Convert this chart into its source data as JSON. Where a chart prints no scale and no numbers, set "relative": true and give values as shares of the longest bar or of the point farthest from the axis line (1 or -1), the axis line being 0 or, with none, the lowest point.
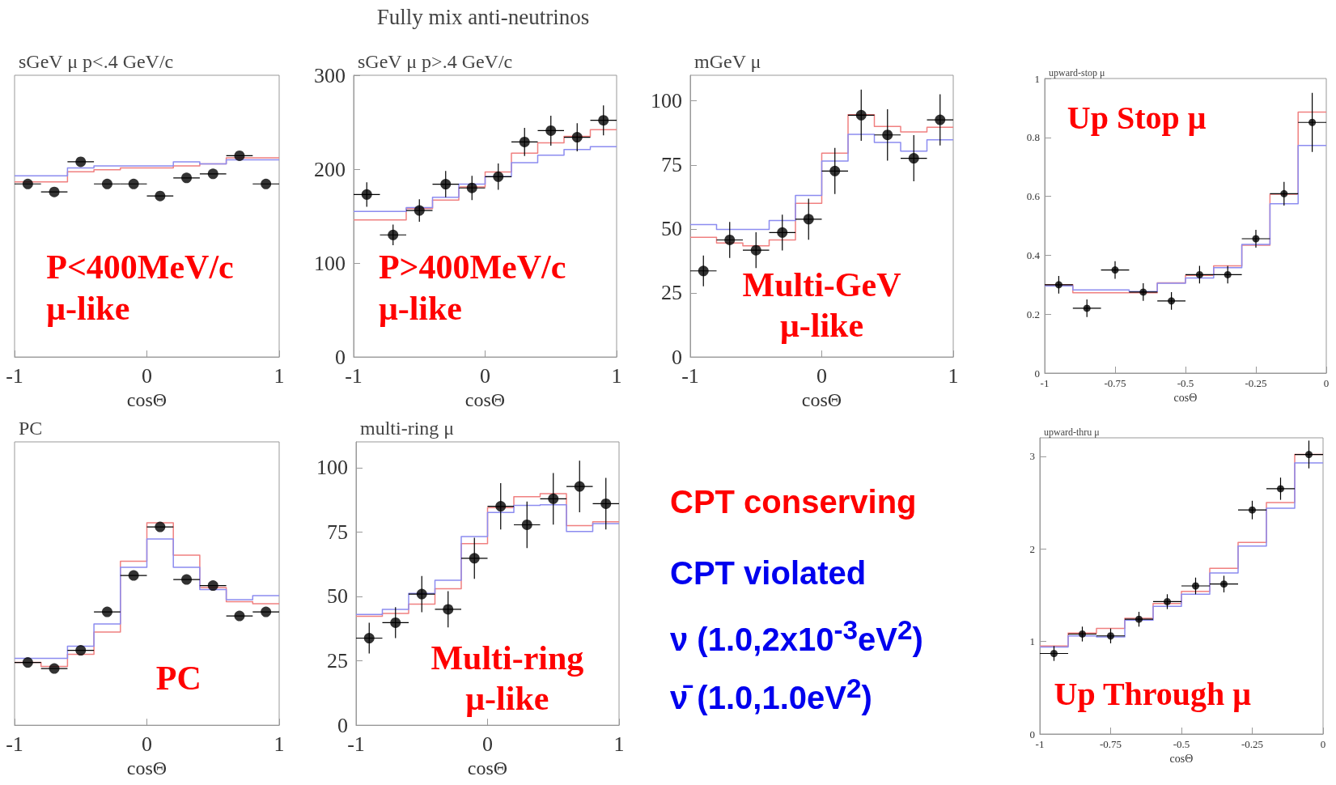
{
  "chart_data": [
    {
      "type": "scatter",
      "title": "sGeV μ p<.4 GeV/c",
      "xlabel": "cosΘ",
      "relative": true,
      "tick_labels": "x",
      "xlim": [
        -1,
        1
      ],
      "xticks": [
        -1,
        0,
        1
      ],
      "annotations": [
        "P<400MeV/c\nμ-like"
      ],
      "series": [
        {
          "type": "step",
          "color": "#f08080",
          "x": [
            -1,
            -0.8,
            -0.6,
            -0.4,
            -0.2,
            0,
            0.2,
            0.4,
            0.6,
            0.8,
            1
          ],
          "values": [
            0.87,
            0.87,
            0.92,
            0.93,
            0.94,
            0.94,
            0.95,
            0.96,
            0.99,
            0.99,
            0.99
          ]
        },
        {
          "type": "step",
          "color": "#8c8cf0",
          "x": [
            -1,
            -0.8,
            -0.6,
            -0.4,
            -0.2,
            0,
            0.2,
            0.4,
            0.6,
            0.8,
            1
          ],
          "values": [
            0.9,
            0.9,
            0.94,
            0.95,
            0.95,
            0.95,
            0.97,
            0.96,
            0.98,
            0.98,
            0.98
          ]
        },
        {
          "type": "scatter",
          "marker": "circle",
          "color": "#000000",
          "x": [
            -0.9,
            -0.7,
            -0.5,
            -0.3,
            -0.1,
            0.1,
            0.3,
            0.5,
            0.7,
            0.9
          ],
          "values": [
            0.86,
            0.82,
            0.97,
            0.86,
            0.86,
            0.8,
            0.89,
            0.91,
            1.0,
            0.86
          ],
          "xerrors": [
            0.1,
            0.1,
            0.1,
            0.1,
            0.1,
            0.1,
            0.1,
            0.1,
            0.1,
            0.1
          ]
        }
      ]
    },
    {
      "type": "scatter",
      "title": "sGeV μ p>.4 GeV/c",
      "xlabel": "cosΘ",
      "xlim": [
        -1,
        1
      ],
      "xticks": [
        -1,
        0,
        1
      ],
      "ylim": [
        0,
        300
      ],
      "yticks": [
        0,
        100,
        200,
        300
      ],
      "annotations": [
        "P>400MeV/c\nμ-like"
      ],
      "series": [
        {
          "type": "step",
          "color": "#f08080",
          "x": [
            -1,
            -0.8,
            -0.6,
            -0.4,
            -0.2,
            0,
            0.2,
            0.4,
            0.6,
            0.8,
            1
          ],
          "values": [
            146,
            146,
            158,
            167,
            181,
            197,
            217,
            228,
            235,
            242,
            242
          ]
        },
        {
          "type": "step",
          "color": "#8c8cf0",
          "x": [
            -1,
            -0.8,
            -0.6,
            -0.4,
            -0.2,
            0,
            0.2,
            0.4,
            0.6,
            0.8,
            1
          ],
          "values": [
            155,
            155,
            159,
            170,
            184,
            192,
            207,
            215,
            221,
            224,
            224
          ]
        },
        {
          "type": "scatter",
          "marker": "circle",
          "color": "#000000",
          "x": [
            -0.9,
            -0.7,
            -0.5,
            -0.3,
            -0.1,
            0.1,
            0.3,
            0.5,
            0.7,
            0.9
          ],
          "values": [
            173,
            130,
            156,
            184,
            180,
            192,
            229,
            241,
            234,
            252
          ],
          "errors": [
            13,
            11,
            12,
            14,
            13,
            14,
            15,
            16,
            15,
            16
          ],
          "xerrors": [
            0.1,
            0.1,
            0.1,
            0.1,
            0.1,
            0.1,
            0.1,
            0.1,
            0.1,
            0.1
          ]
        }
      ]
    },
    {
      "type": "scatter",
      "title": "mGeV μ",
      "xlabel": "cosΘ",
      "xlim": [
        -1,
        1
      ],
      "xticks": [
        -1,
        0,
        1
      ],
      "ylim": [
        0,
        110
      ],
      "yticks": [
        0,
        25,
        50,
        75,
        100
      ],
      "annotations": [
        "Multi-GeV\nμ-like"
      ],
      "series": [
        {
          "type": "step",
          "color": "#f08080",
          "x": [
            -1,
            -0.8,
            -0.6,
            -0.4,
            -0.2,
            0,
            0.2,
            0.4,
            0.6,
            0.8,
            1
          ],
          "values": [
            46.7,
            44.5,
            43.4,
            45.7,
            60,
            79.6,
            94.6,
            90,
            87.9,
            89.7,
            89.7
          ]
        },
        {
          "type": "step",
          "color": "#8c8cf0",
          "x": [
            -1,
            -0.8,
            -0.6,
            -0.4,
            -0.2,
            0,
            0.2,
            0.4,
            0.6,
            0.8,
            1
          ],
          "values": [
            51.7,
            49.8,
            49.8,
            53.3,
            63.1,
            76.5,
            86.9,
            83.8,
            80.4,
            84.8,
            84.8
          ]
        },
        {
          "type": "scatter",
          "marker": "circle",
          "color": "#000000",
          "x": [
            -0.9,
            -0.7,
            -0.5,
            -0.3,
            -0.1,
            0.1,
            0.3,
            0.5,
            0.7,
            0.9
          ],
          "values": [
            33.6,
            45.7,
            41.7,
            48.6,
            53.8,
            72.6,
            94.4,
            86.7,
            77.6,
            92.6
          ],
          "errors": [
            6,
            7,
            7,
            7,
            8,
            9,
            10,
            10,
            9,
            10
          ],
          "xerrors": [
            0.1,
            0.1,
            0.1,
            0.1,
            0.1,
            0.1,
            0.1,
            0.1,
            0.1,
            0.1
          ]
        }
      ]
    },
    {
      "type": "scatter",
      "title": "upward-stop μ",
      "xlabel": "cosΘ",
      "xlim": [
        -1,
        0
      ],
      "xticks": [
        -1,
        -0.75,
        -0.5,
        -0.25,
        0
      ],
      "ylim": [
        0,
        1
      ],
      "yticks": [
        0,
        0.2,
        0.4,
        0.6,
        0.8,
        1
      ],
      "annotations": [
        "Up Stop μ"
      ],
      "series": [
        {
          "type": "step",
          "color": "#f08080",
          "x": [
            -1,
            -0.9,
            -0.8,
            -0.7,
            -0.6,
            -0.5,
            -0.4,
            -0.3,
            -0.2,
            -0.1,
            0
          ],
          "values": [
            0.3,
            0.273,
            0.273,
            0.273,
            0.306,
            0.332,
            0.364,
            0.434,
            0.607,
            0.886,
            0.886
          ]
        },
        {
          "type": "step",
          "color": "#8c8cf0",
          "x": [
            -1,
            -0.9,
            -0.8,
            -0.7,
            -0.6,
            -0.5,
            -0.4,
            -0.3,
            -0.2,
            -0.1,
            0
          ],
          "values": [
            0.296,
            0.282,
            0.282,
            0.277,
            0.305,
            0.323,
            0.358,
            0.437,
            0.575,
            0.773,
            0.773
          ]
        },
        {
          "type": "scatter",
          "marker": "circle",
          "color": "#000000",
          "x": [
            -0.95,
            -0.85,
            -0.75,
            -0.65,
            -0.55,
            -0.45,
            -0.35,
            -0.25,
            -0.15,
            -0.05
          ],
          "values": [
            0.3,
            0.22,
            0.35,
            0.275,
            0.245,
            0.334,
            0.334,
            0.456,
            0.609,
            0.851
          ],
          "errors": [
            0.03,
            0.03,
            0.03,
            0.03,
            0.03,
            0.03,
            0.03,
            0.03,
            0.04,
            0.1
          ],
          "xerrors": [
            0.05,
            0.05,
            0.05,
            0.05,
            0.05,
            0.05,
            0.05,
            0.05,
            0.05,
            0.05
          ]
        }
      ]
    },
    {
      "type": "scatter",
      "title": "PC",
      "xlabel": "cosΘ",
      "relative": true,
      "tick_labels": "x",
      "xlim": [
        -1,
        1
      ],
      "xticks": [
        -1,
        0,
        1
      ],
      "annotations": [
        "PC"
      ],
      "series": [
        {
          "type": "step",
          "color": "#f08080",
          "x": [
            -1,
            -0.8,
            -0.6,
            -0.4,
            -0.2,
            0,
            0.2,
            0.4,
            0.6,
            0.8,
            1
          ],
          "values": [
            0.31,
            0.29,
            0.35,
            0.46,
            0.81,
            1.0,
            0.84,
            0.68,
            0.61,
            0.6,
            0.6
          ]
        },
        {
          "type": "step",
          "color": "#8c8cf0",
          "x": [
            -1,
            -0.8,
            -0.6,
            -0.4,
            -0.2,
            0,
            0.2,
            0.4,
            0.6,
            0.8,
            1
          ],
          "values": [
            0.33,
            0.33,
            0.39,
            0.5,
            0.78,
            0.92,
            0.78,
            0.67,
            0.62,
            0.64,
            0.64
          ]
        },
        {
          "type": "scatter",
          "marker": "circle",
          "color": "#000000",
          "x": [
            -0.9,
            -0.7,
            -0.5,
            -0.3,
            -0.1,
            0.1,
            0.3,
            0.5,
            0.7,
            0.9
          ],
          "values": [
            0.31,
            0.28,
            0.37,
            0.56,
            0.74,
            0.98,
            0.72,
            0.69,
            0.54,
            0.56
          ],
          "xerrors": [
            0.1,
            0.1,
            0.1,
            0.1,
            0.1,
            0.1,
            0.1,
            0.1,
            0.1,
            0.1
          ]
        }
      ]
    },
    {
      "type": "scatter",
      "title": "multi-ring μ",
      "xlabel": "cosΘ",
      "xlim": [
        -1,
        1
      ],
      "xticks": [
        -1,
        0,
        1
      ],
      "ylim": [
        0,
        110
      ],
      "yticks": [
        0,
        25,
        50,
        75,
        100
      ],
      "annotations": [
        "Multi-ring\nμ-like"
      ],
      "series": [
        {
          "type": "step",
          "color": "#f08080",
          "x": [
            -1,
            -0.8,
            -0.6,
            -0.4,
            -0.2,
            0,
            0.2,
            0.4,
            0.6,
            0.8,
            1
          ],
          "values": [
            42.3,
            43.4,
            47,
            53,
            70.5,
            84.5,
            88.7,
            89.9,
            77.5,
            79,
            79
          ]
        },
        {
          "type": "step",
          "color": "#8c8cf0",
          "x": [
            -1,
            -0.8,
            -0.6,
            -0.4,
            -0.2,
            0,
            0.2,
            0.4,
            0.6,
            0.8,
            1
          ],
          "values": [
            43,
            45,
            51.2,
            56.3,
            73.2,
            82.6,
            85.3,
            85.6,
            75.2,
            78.3,
            78.3
          ]
        },
        {
          "type": "scatter",
          "marker": "circle",
          "color": "#000000",
          "x": [
            -0.9,
            -0.7,
            -0.5,
            -0.3,
            -0.1,
            0.1,
            0.3,
            0.5,
            0.7,
            0.9
          ],
          "values": [
            33.8,
            39.8,
            50.9,
            45,
            64.8,
            85,
            77.8,
            87.9,
            92.7,
            86
          ],
          "errors": [
            6,
            6,
            7,
            7,
            8,
            9,
            9,
            10,
            10,
            10
          ],
          "xerrors": [
            0.1,
            0.1,
            0.1,
            0.1,
            0.1,
            0.1,
            0.1,
            0.1,
            0.1,
            0.1
          ]
        }
      ]
    },
    {
      "type": "other",
      "title": "Fully mix anti-neutrinos",
      "annotations": [
        "CPT conserving",
        "CPT violated",
        "ν (1.0,2x10$^{-3}$eV$^{2}$)",
        "ν̄ (1.0,1.0eV$^{2}$)"
      ]
    },
    {
      "type": "scatter",
      "title": "upward-thru μ",
      "xlabel": "cosΘ",
      "xlim": [
        -1,
        0
      ],
      "xticks": [
        -1,
        -0.75,
        -0.5,
        -0.25,
        0
      ],
      "ylim": [
        0,
        3.2
      ],
      "yticks": [
        0,
        1,
        2,
        3
      ],
      "annotations": [
        "Up Through μ"
      ],
      "series": [
        {
          "type": "step",
          "color": "#f08080",
          "x": [
            -1,
            -0.9,
            -0.8,
            -0.7,
            -0.6,
            -0.5,
            -0.4,
            -0.3,
            -0.2,
            -0.1,
            0
          ],
          "values": [
            0.95,
            1.09,
            1.14,
            1.25,
            1.41,
            1.54,
            1.79,
            2.07,
            2.5,
            3.02,
            3.02
          ]
        },
        {
          "type": "step",
          "color": "#8c8cf0",
          "x": [
            -1,
            -0.9,
            -0.8,
            -0.7,
            -0.6,
            -0.5,
            -0.4,
            -0.3,
            -0.2,
            -0.1,
            0
          ],
          "values": [
            0.94,
            1.06,
            1.05,
            1.23,
            1.38,
            1.51,
            1.74,
            2.03,
            2.44,
            2.93,
            2.93
          ]
        },
        {
          "type": "scatter",
          "marker": "circle",
          "color": "#000000",
          "x": [
            -0.95,
            -0.85,
            -0.75,
            -0.65,
            -0.55,
            -0.45,
            -0.35,
            -0.25,
            -0.15,
            -0.05
          ],
          "values": [
            0.87,
            1.08,
            1.06,
            1.24,
            1.43,
            1.6,
            1.62,
            2.42,
            2.65,
            3.02
          ],
          "errors": [
            0.08,
            0.08,
            0.08,
            0.08,
            0.08,
            0.09,
            0.09,
            0.1,
            0.12,
            0.15
          ],
          "xerrors": [
            0.05,
            0.05,
            0.05,
            0.05,
            0.05,
            0.05,
            0.05,
            0.05,
            0.05,
            0.05
          ]
        }
      ]
    }
  ]
}
